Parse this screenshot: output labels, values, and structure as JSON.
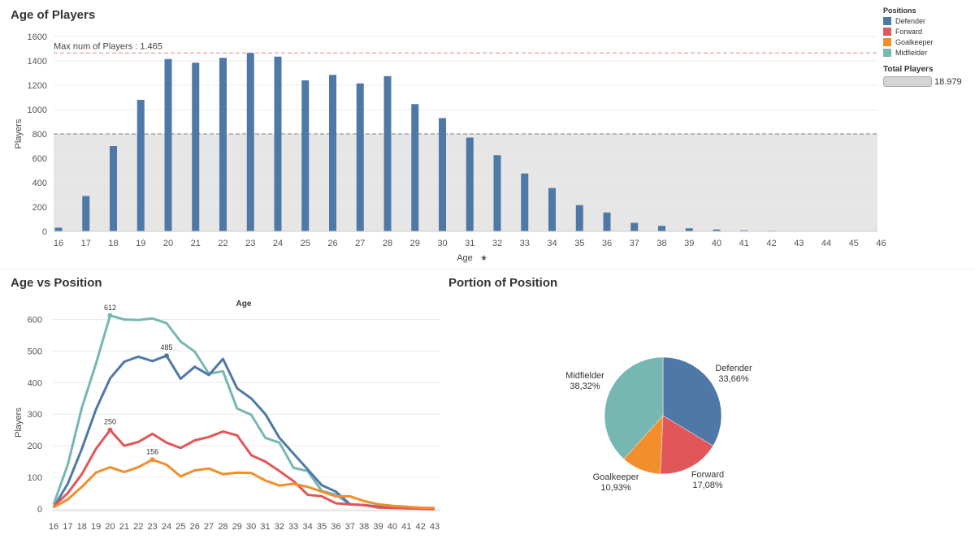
{
  "dashboard": {
    "top_title": "Age of Players",
    "line_title": "Age vs Position",
    "pie_title": "Portion of Position"
  },
  "legend": {
    "title": "Positions",
    "items": [
      {
        "label": "Defender",
        "color": "#4e79a7"
      },
      {
        "label": "Forward",
        "color": "#e15759"
      },
      {
        "label": "Goalkeeper",
        "color": "#f28e2b"
      },
      {
        "label": "Midfielder",
        "color": "#76b7b2"
      }
    ]
  },
  "total_players": {
    "label": "Total Players",
    "value": "18.979"
  },
  "chart_data": [
    {
      "type": "bar",
      "title": "Age of Players",
      "xlabel": "Age",
      "ylabel": "Players",
      "ylim": [
        0,
        1600
      ],
      "yticks": [
        0,
        200,
        400,
        600,
        800,
        1000,
        1200,
        1400,
        1600
      ],
      "categories": [
        16,
        17,
        18,
        19,
        20,
        21,
        22,
        23,
        24,
        25,
        26,
        27,
        28,
        29,
        30,
        31,
        32,
        33,
        34,
        35,
        36,
        37,
        38,
        39,
        40,
        41,
        42,
        43,
        44,
        45,
        46
      ],
      "values": [
        30,
        290,
        700,
        1080,
        1415,
        1385,
        1425,
        1465,
        1435,
        1240,
        1285,
        1215,
        1275,
        1045,
        930,
        770,
        625,
        475,
        355,
        215,
        155,
        70,
        45,
        25,
        15,
        8,
        5,
        0,
        0,
        0,
        0
      ],
      "color": "#4e79a7",
      "reference_line": {
        "value": 1465,
        "label": "Max num of Players : 1.465",
        "color": "#e8a0a0"
      },
      "band": {
        "from": 0,
        "to": 800,
        "color": "#e6e6e6"
      },
      "grid": true
    },
    {
      "type": "line",
      "title": "Age",
      "xlabel": "",
      "ylabel": "Players",
      "ylim": [
        0,
        650
      ],
      "yticks": [
        0,
        100,
        200,
        300,
        400,
        500,
        600
      ],
      "x": [
        16,
        17,
        18,
        19,
        20,
        21,
        22,
        23,
        24,
        25,
        26,
        27,
        28,
        29,
        30,
        31,
        32,
        33,
        34,
        35,
        36,
        37,
        38,
        39,
        40,
        41,
        42,
        43
      ],
      "series": [
        {
          "name": "Midfielder",
          "color": "#76b7b2",
          "values": [
            15,
            140,
            320,
            460,
            612,
            600,
            598,
            603,
            588,
            530,
            498,
            428,
            436,
            318,
            298,
            225,
            210,
            130,
            120,
            57,
            45,
            15,
            12,
            5,
            3,
            2,
            1,
            0
          ]
        },
        {
          "name": "Defender",
          "color": "#4e79a7",
          "values": [
            5,
            80,
            190,
            315,
            413,
            466,
            482,
            468,
            485,
            412,
            450,
            424,
            475,
            382,
            350,
            300,
            225,
            175,
            125,
            75,
            55,
            15,
            12,
            8,
            5,
            4,
            3,
            2
          ]
        },
        {
          "name": "Forward",
          "color": "#e15759",
          "values": [
            8,
            50,
            110,
            190,
            250,
            200,
            212,
            238,
            210,
            193,
            217,
            228,
            245,
            233,
            170,
            150,
            120,
            88,
            45,
            40,
            18,
            15,
            12,
            5,
            3,
            2,
            1,
            0
          ]
        },
        {
          "name": "Goalkeeper",
          "color": "#f28e2b",
          "values": [
            5,
            30,
            70,
            115,
            132,
            117,
            132,
            156,
            140,
            103,
            122,
            128,
            110,
            115,
            114,
            90,
            74,
            80,
            70,
            55,
            40,
            40,
            25,
            15,
            10,
            7,
            4,
            3
          ]
        }
      ],
      "point_labels": [
        {
          "series": "Midfielder",
          "x": 20,
          "text": "612"
        },
        {
          "series": "Defender",
          "x": 24,
          "text": "485"
        },
        {
          "series": "Forward",
          "x": 20,
          "text": "250"
        },
        {
          "series": "Goalkeeper",
          "x": 23,
          "text": "156"
        }
      ],
      "grid": true
    },
    {
      "type": "pie",
      "title": "Portion of Position",
      "slices": [
        {
          "name": "Defender",
          "value": 33.66,
          "label": "Defender",
          "pct": "33,66%",
          "color": "#4e79a7"
        },
        {
          "name": "Forward",
          "value": 17.08,
          "label": "Forward",
          "pct": "17,08%",
          "color": "#e15759"
        },
        {
          "name": "Goalkeeper",
          "value": 10.93,
          "label": "Goalkeeper",
          "pct": "10,93%",
          "color": "#f28e2b"
        },
        {
          "name": "Midfielder",
          "value": 38.32,
          "label": "Midfielder",
          "pct": "38,32%",
          "color": "#76b7b2"
        }
      ]
    }
  ]
}
